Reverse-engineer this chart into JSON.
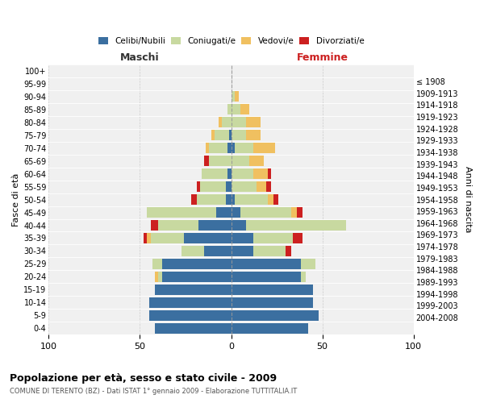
{
  "age_groups": [
    "100+",
    "95-99",
    "90-94",
    "85-89",
    "80-84",
    "75-79",
    "70-74",
    "65-69",
    "60-64",
    "55-59",
    "50-54",
    "45-49",
    "40-44",
    "35-39",
    "30-34",
    "25-29",
    "20-24",
    "15-19",
    "10-14",
    "5-9",
    "0-4"
  ],
  "birth_years": [
    "≤ 1908",
    "1909-1913",
    "1914-1918",
    "1919-1923",
    "1924-1928",
    "1929-1933",
    "1934-1938",
    "1939-1943",
    "1944-1948",
    "1949-1953",
    "1954-1958",
    "1959-1963",
    "1964-1968",
    "1969-1973",
    "1974-1978",
    "1979-1983",
    "1984-1988",
    "1989-1993",
    "1994-1998",
    "1999-2003",
    "2004-2008"
  ],
  "males": {
    "celibi": [
      0,
      0,
      0,
      0,
      0,
      1,
      2,
      0,
      2,
      3,
      3,
      8,
      18,
      26,
      15,
      38,
      38,
      42,
      45,
      45,
      42
    ],
    "coniugati": [
      0,
      0,
      0,
      2,
      5,
      8,
      10,
      12,
      14,
      14,
      16,
      38,
      22,
      18,
      12,
      5,
      2,
      0,
      0,
      0,
      0
    ],
    "vedovi": [
      0,
      0,
      0,
      0,
      2,
      2,
      2,
      0,
      0,
      0,
      0,
      0,
      0,
      2,
      0,
      0,
      2,
      0,
      0,
      0,
      0
    ],
    "divorziati": [
      0,
      0,
      0,
      0,
      0,
      0,
      0,
      3,
      0,
      2,
      3,
      0,
      4,
      2,
      0,
      0,
      0,
      0,
      0,
      0,
      0
    ]
  },
  "females": {
    "nubili": [
      0,
      0,
      0,
      0,
      0,
      0,
      2,
      0,
      0,
      0,
      2,
      5,
      8,
      12,
      12,
      38,
      38,
      45,
      45,
      48,
      42
    ],
    "coniugate": [
      0,
      0,
      2,
      5,
      8,
      8,
      10,
      10,
      12,
      14,
      18,
      28,
      55,
      22,
      18,
      8,
      3,
      0,
      0,
      0,
      0
    ],
    "vedove": [
      0,
      0,
      2,
      5,
      8,
      8,
      12,
      8,
      8,
      5,
      3,
      3,
      0,
      0,
      0,
      0,
      0,
      0,
      0,
      0,
      0
    ],
    "divorziate": [
      0,
      0,
      0,
      0,
      0,
      0,
      0,
      0,
      2,
      3,
      3,
      3,
      0,
      5,
      3,
      0,
      0,
      0,
      0,
      0,
      0
    ]
  },
  "colors": {
    "celibi_nubili": "#3b6fa0",
    "coniugati": "#c8d9a0",
    "vedovi": "#f0c060",
    "divorziati": "#cc2020"
  },
  "title": "Popolazione per età, sesso e stato civile - 2009",
  "subtitle": "COMUNE DI TERENTO (BZ) - Dati ISTAT 1° gennaio 2009 - Elaborazione TUTTITALIA.IT",
  "label_maschi": "Maschi",
  "label_femmine": "Femmine",
  "ylabel_left": "Fasce di età",
  "ylabel_right": "Anni di nascita",
  "xlim": 100,
  "legend_labels": [
    "Celibi/Nubili",
    "Coniugati/e",
    "Vedovi/e",
    "Divorziati/e"
  ],
  "bg_color": "#ffffff",
  "plot_bg_color": "#f0f0f0"
}
